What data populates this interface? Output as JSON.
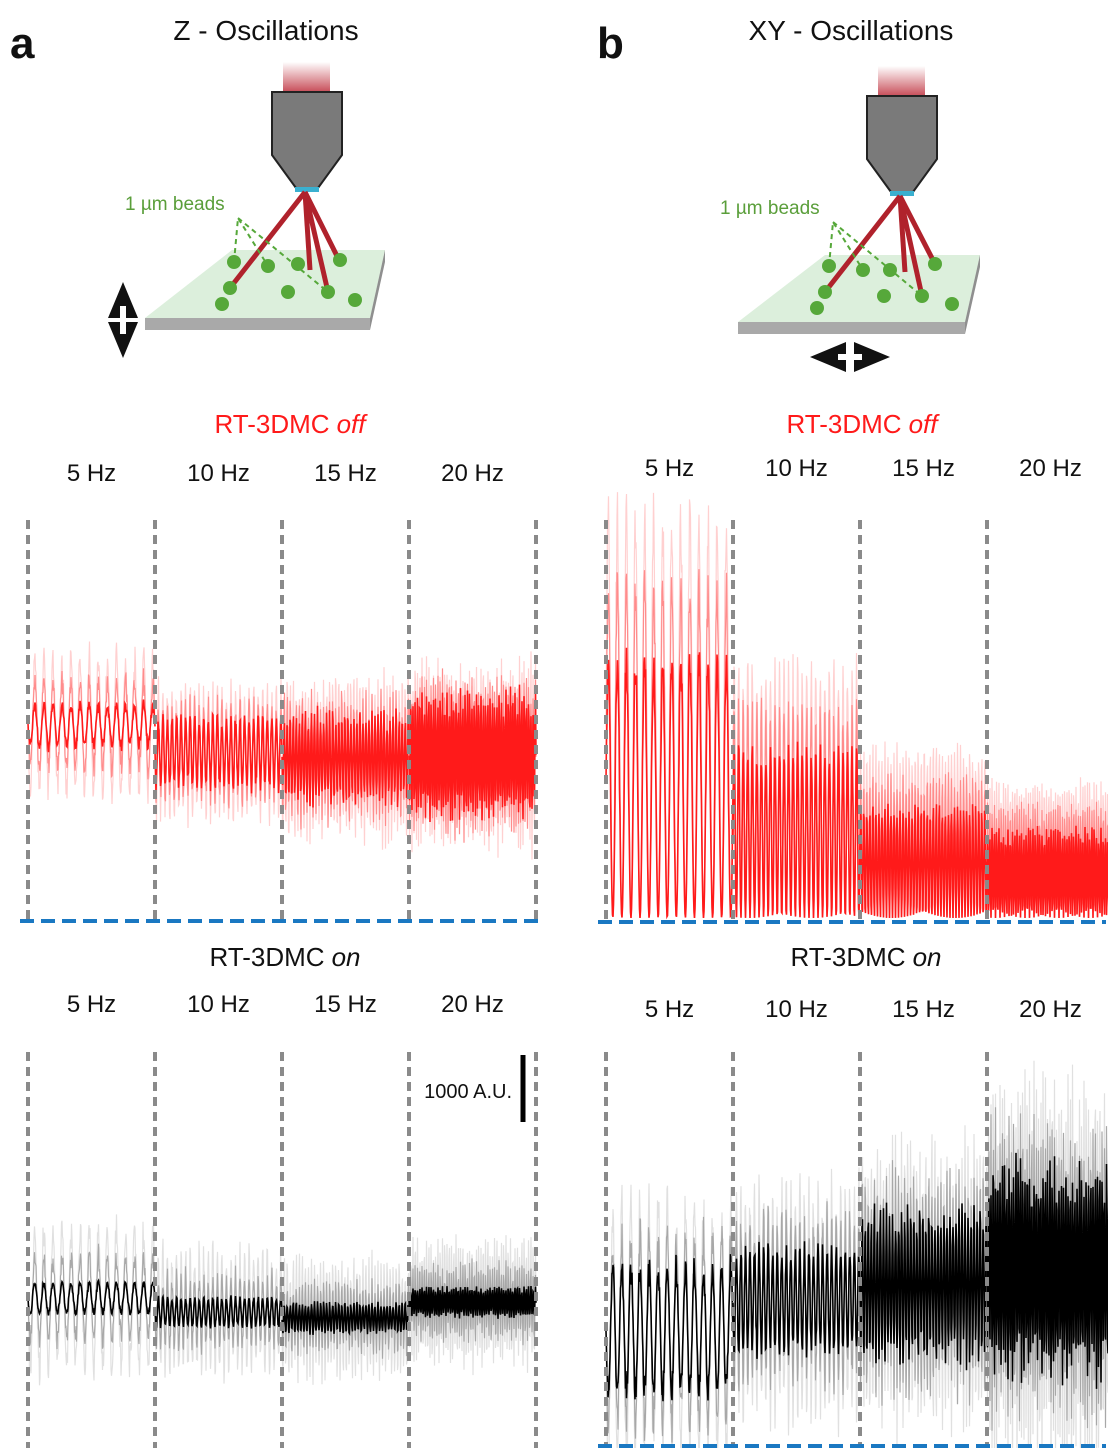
{
  "panels": [
    {
      "label": "a",
      "title": "Z - Oscillations",
      "beads_label": "1 µm beads",
      "off": {
        "title": "RT-3DMC",
        "state": "off",
        "frequencies": [
          "5 Hz",
          "10 Hz",
          "15 Hz",
          "20 Hz"
        ]
      },
      "on": {
        "title": "RT-3DMC",
        "state": "on",
        "frequencies": [
          "5 Hz",
          "10 Hz",
          "15 Hz",
          "20 Hz"
        ],
        "scale_bar": "1000 A.U."
      }
    },
    {
      "label": "b",
      "title": "XY - Oscillations",
      "beads_label": "1 µm beads",
      "off": {
        "title": "RT-3DMC",
        "state": "off",
        "frequencies": [
          "5 Hz",
          "10 Hz",
          "15 Hz",
          "20 Hz"
        ]
      },
      "on": {
        "title": "RT-3DMC",
        "state": "on",
        "frequencies": [
          "5 Hz",
          "10 Hz",
          "15 Hz",
          "20 Hz"
        ]
      }
    }
  ]
}
